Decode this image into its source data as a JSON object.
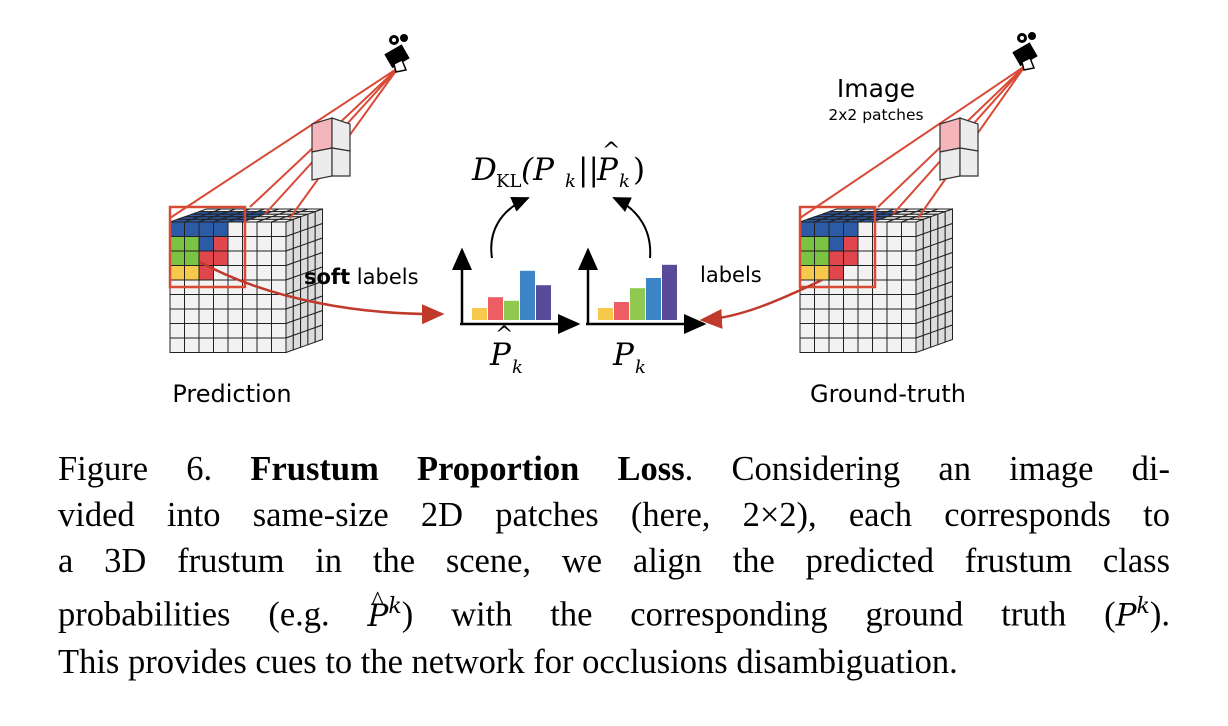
{
  "figure": {
    "left_label": "Prediction",
    "right_label": "Ground-truth",
    "soft_labels_bold": "soft",
    "soft_labels_rest": " labels",
    "labels": "labels",
    "image_title": "Image",
    "image_subtitle": "2x2 patches",
    "kl_D": "D",
    "kl_sub": "KL",
    "kl_args": "(P",
    "kl_k1": "k",
    "kl_mid": "||",
    "kl_phat": "P",
    "kl_k2": "k",
    "kl_close": ")",
    "p_hat": "P",
    "p_hat_sub": "k",
    "p": "P",
    "p_sub": "k",
    "bar_colors": [
      "#f6c94c",
      "#ed5d63",
      "#8fc94f",
      "#3c85c6",
      "#5a4a9a"
    ],
    "hist_pred_values": [
      0.2,
      0.38,
      0.32,
      0.82,
      0.58
    ],
    "hist_gt_values": [
      0.2,
      0.3,
      0.53,
      0.7,
      0.92
    ]
  },
  "caption": {
    "fig_num": "Figure 6.",
    "title": "Frustum Proportion Loss",
    "line1_rest": ". Considering an image di-",
    "line2": "vided into same-size 2D patches (here, 2×2), each corresponds to",
    "line3": "a 3D frustum in the scene, we align the predicted frustum class",
    "line4_a": "probabilities (e.g.",
    "line4_phat": "P",
    "line4_sup1": "k",
    "line4_b": ") with the corresponding ground truth (",
    "line4_p": "P",
    "line4_sup2": "k",
    "line4_c": ").",
    "line5": "This provides cues to the network for occlusions disambiguation."
  }
}
